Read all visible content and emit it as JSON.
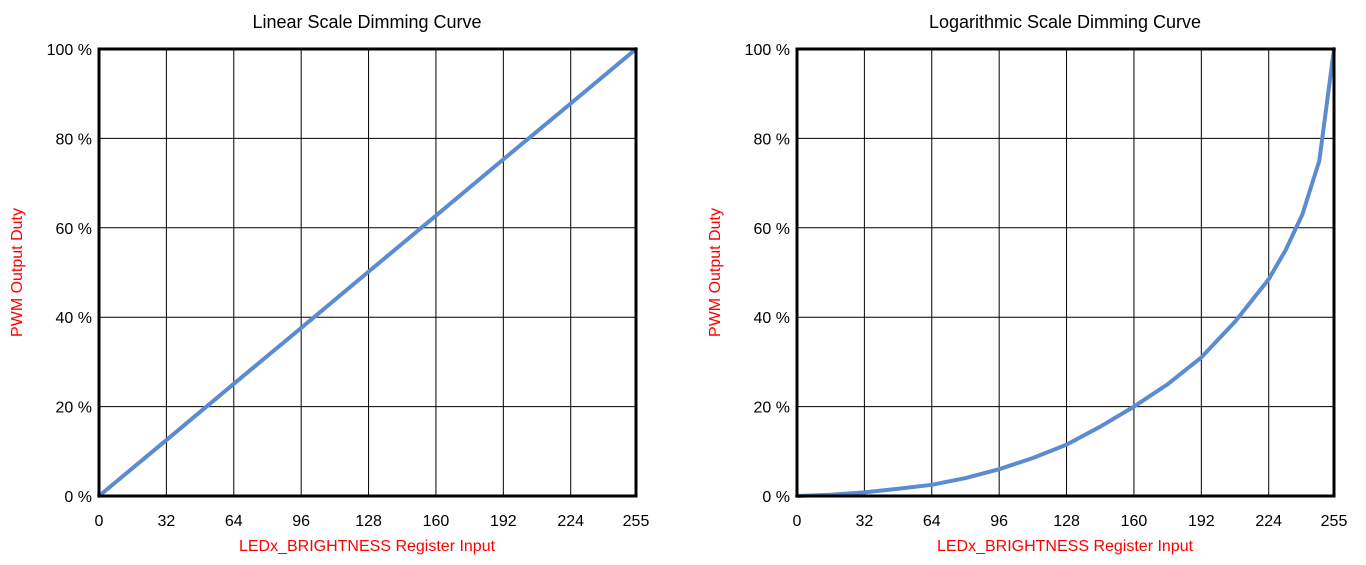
{
  "colors": {
    "axis_label": "#ff0000",
    "series": "#5b8bd0",
    "frame": "#000000",
    "grid": "#000000"
  },
  "chart_data": [
    {
      "type": "line",
      "title": "Linear Scale Dimming Curve",
      "xlabel": "LEDx_BRIGHTNESS Register Input",
      "ylabel": "PWM Output Duty",
      "xlim": [
        0,
        255
      ],
      "ylim": [
        0,
        100
      ],
      "x_ticks": [
        0,
        32,
        64,
        96,
        128,
        160,
        192,
        224,
        255
      ],
      "y_ticks": [
        0,
        20,
        40,
        60,
        80,
        100
      ],
      "y_tick_labels": [
        "0 %",
        "20 %",
        "40 %",
        "60 %",
        "80 %",
        "100 %"
      ],
      "grid": true,
      "series": [
        {
          "x": [
            0,
            32,
            64,
            96,
            128,
            160,
            192,
            224,
            255
          ],
          "y": [
            0,
            12.5,
            25.1,
            37.6,
            50.2,
            62.7,
            75.3,
            87.8,
            100
          ]
        }
      ]
    },
    {
      "type": "line",
      "title": "Logarithmic Scale Dimming Curve",
      "xlabel": "LEDx_BRIGHTNESS Register Input",
      "ylabel": "PWM Output Duty",
      "xlim": [
        0,
        255
      ],
      "ylim": [
        0,
        100
      ],
      "x_ticks": [
        0,
        32,
        64,
        96,
        128,
        160,
        192,
        224,
        255
      ],
      "y_ticks": [
        0,
        20,
        40,
        60,
        80,
        100
      ],
      "y_tick_labels": [
        "0 %",
        "20 %",
        "40 %",
        "60 %",
        "80 %",
        "100 %"
      ],
      "grid": true,
      "series": [
        {
          "x": [
            0,
            16,
            32,
            48,
            64,
            80,
            96,
            112,
            128,
            144,
            160,
            176,
            192,
            208,
            224,
            232,
            240,
            248,
            255
          ],
          "y": [
            0,
            0.3,
            0.8,
            1.6,
            2.5,
            4,
            6,
            8.5,
            11.5,
            15.5,
            20,
            25,
            31,
            39,
            48.5,
            55,
            63,
            75,
            100
          ]
        }
      ]
    }
  ]
}
